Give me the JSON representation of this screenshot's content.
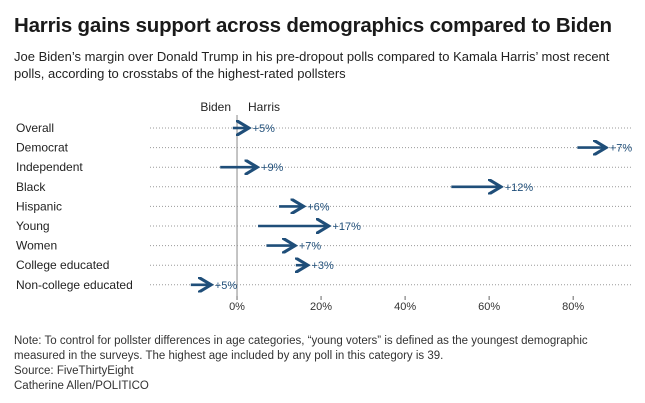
{
  "title": "Harris gains support across demographics compared to Biden",
  "subtitle": "Joe Biden’s margin over Donald Trump in his pre-dropout polls compared to Kamala Harris’ most recent polls, according to crosstabs of the highest-rated pollsters",
  "chart_data": {
    "type": "arrow-dot",
    "direction_labels": {
      "left": "Biden",
      "right": "Harris"
    },
    "categories": [
      "Overall",
      "Democrat",
      "Independent",
      "Black",
      "Hispanic",
      "Young",
      "Women",
      "College educated",
      "Non-college educated"
    ],
    "biden_margin": [
      -1,
      81,
      -4,
      51,
      10,
      5,
      7,
      14,
      -11
    ],
    "harris_margin": [
      3,
      88,
      5,
      63,
      16,
      22,
      14,
      17,
      -6
    ],
    "change_labels": [
      "+5%",
      "+7%",
      "+9%",
      "+12%",
      "+6%",
      "+17%",
      "+7%",
      "+3%",
      "+5%"
    ],
    "xticks": [
      0,
      20,
      40,
      60,
      80
    ],
    "xtick_labels": [
      "0%",
      "20%",
      "40%",
      "60%",
      "80%"
    ],
    "xlim": [
      -10,
      94
    ],
    "colors": {
      "arrow": "#1f4e79",
      "grid": "#9a9a9a",
      "zero_line": "#888888"
    }
  },
  "footer": {
    "note": "Note: To control for pollster differences in age categories, “young voters” is defined as the youngest demographic measured in the surveys. The highest age included by any poll in this category is 39.",
    "source": "Source: FiveThirtyEight",
    "credit": "Catherine Allen/POLITICO"
  }
}
